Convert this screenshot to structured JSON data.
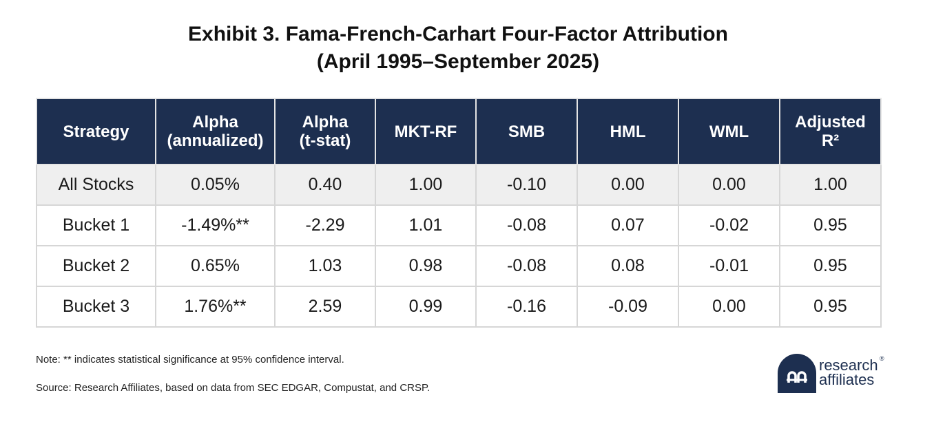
{
  "title": {
    "line1": "Exhibit 3. Fama-French-Carhart Four-Factor Attribution",
    "line2": "(April 1995–September 2025)"
  },
  "table": {
    "headers": [
      [
        "Strategy"
      ],
      [
        "Alpha",
        "(annualized)"
      ],
      [
        "Alpha",
        "(t-stat)"
      ],
      [
        "MKT-RF"
      ],
      [
        "SMB"
      ],
      [
        "HML"
      ],
      [
        "WML"
      ],
      [
        "Adjusted",
        "R²"
      ]
    ],
    "rows": [
      [
        "All Stocks",
        "0.05%",
        "0.40",
        "1.00",
        "-0.10",
        "0.00",
        "0.00",
        "1.00"
      ],
      [
        "Bucket 1",
        "-1.49%**",
        "-2.29",
        "1.01",
        "-0.08",
        "0.07",
        "-0.02",
        "0.95"
      ],
      [
        "Bucket 2",
        "0.65%",
        "1.03",
        "0.98",
        "-0.08",
        "0.08",
        "-0.01",
        "0.95"
      ],
      [
        "Bucket 3",
        "1.76%**",
        "2.59",
        "0.99",
        "-0.16",
        "-0.09",
        "0.00",
        "0.95"
      ]
    ]
  },
  "note": "Note: ** indicates statistical significance at 95% confidence interval.",
  "source": "Source: Research Affiliates, based on data from SEC EDGAR, Compustat, and CRSP.",
  "logo": {
    "line1": "research",
    "line2": "affiliates",
    "mark": "®",
    "icon": "research-affiliates-logo-mark"
  },
  "colors": {
    "header_bg": "#1d2f50",
    "header_text": "#ffffff",
    "shaded_row": "#efefef",
    "grid": "#d6d6d6",
    "brand": "#1d2f50"
  }
}
